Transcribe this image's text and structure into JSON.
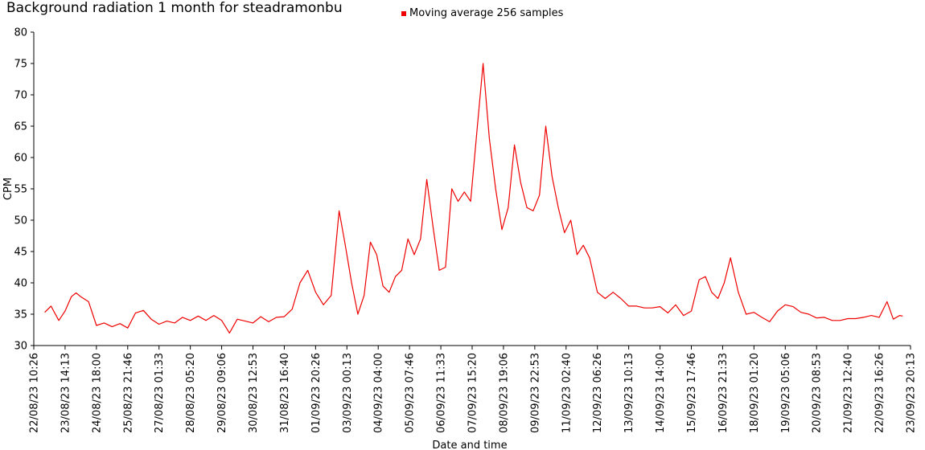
{
  "chart_data": {
    "type": "line",
    "title": "Background radiation 1 month for steadramonbu",
    "xlabel": "Date and time",
    "ylabel": "CPM",
    "ylim": [
      30,
      80
    ],
    "yticks": [
      30,
      35,
      40,
      45,
      50,
      55,
      60,
      65,
      70,
      75,
      80
    ],
    "xticks": [
      "22/08/23 10:26",
      "23/08/23 14:13",
      "24/08/23 18:00",
      "25/08/23 21:46",
      "27/08/23 01:33",
      "28/08/23 05:20",
      "29/08/23 09:06",
      "30/08/23 12:53",
      "31/08/23 16:40",
      "01/09/23 20:26",
      "03/09/23 00:13",
      "04/09/23 04:00",
      "05/09/23 07:46",
      "06/09/23 11:33",
      "07/09/23 15:20",
      "08/09/23 19:06",
      "09/09/23 22:53",
      "11/09/23 02:40",
      "12/09/23 06:26",
      "13/09/23 10:13",
      "14/09/23 14:00",
      "15/09/23 17:46",
      "16/09/23 21:33",
      "18/09/23 01:20",
      "19/09/23 05:06",
      "20/09/23 08:53",
      "21/09/23 12:40",
      "22/09/23 16:26",
      "23/09/23 20:13"
    ],
    "legend": "top-center",
    "grid": false,
    "series": [
      {
        "name": "Moving average 256 samples",
        "color": "#ee0000",
        "x": [
          0.35,
          0.55,
          0.8,
          1.0,
          1.2,
          1.35,
          1.5,
          1.75,
          2.0,
          2.25,
          2.5,
          2.75,
          3.0,
          3.25,
          3.5,
          3.75,
          4.0,
          4.25,
          4.5,
          4.75,
          5.0,
          5.25,
          5.5,
          5.75,
          6.0,
          6.25,
          6.5,
          6.75,
          7.0,
          7.25,
          7.5,
          7.75,
          8.0,
          8.25,
          8.5,
          8.75,
          9.0,
          9.25,
          9.5,
          9.75,
          9.95,
          10.15,
          10.35,
          10.55,
          10.75,
          10.95,
          11.15,
          11.35,
          11.55,
          11.75,
          11.95,
          12.15,
          12.35,
          12.55,
          12.75,
          12.95,
          13.15,
          13.35,
          13.55,
          13.75,
          13.95,
          14.15,
          14.35,
          14.55,
          14.75,
          14.95,
          15.15,
          15.35,
          15.55,
          15.75,
          15.95,
          16.15,
          16.35,
          16.55,
          16.75,
          16.95,
          17.15,
          17.35,
          17.55,
          17.75,
          18.0,
          18.25,
          18.5,
          18.75,
          19.0,
          19.25,
          19.5,
          19.75,
          20.0,
          20.25,
          20.5,
          20.75,
          21.0,
          21.25,
          21.45,
          21.65,
          21.85,
          22.05,
          22.25,
          22.5,
          22.75,
          23.0,
          23.25,
          23.5,
          23.75,
          24.0,
          24.25,
          24.5,
          24.75,
          25.0,
          25.25,
          25.5,
          25.75,
          26.0,
          26.25,
          26.5,
          26.75,
          27.0,
          27.25,
          27.45,
          27.65,
          27.75
        ],
        "y": [
          35.3,
          36.3,
          34.0,
          35.5,
          37.8,
          38.4,
          37.8,
          37.0,
          33.2,
          33.6,
          33.0,
          33.5,
          32.8,
          35.2,
          35.6,
          34.2,
          33.4,
          33.9,
          33.6,
          34.5,
          34.0,
          34.7,
          34.0,
          34.8,
          34.0,
          32.0,
          34.2,
          33.9,
          33.6,
          34.6,
          33.8,
          34.5,
          34.6,
          35.8,
          40.0,
          42.0,
          38.5,
          36.5,
          38.0,
          51.5,
          46.0,
          40.0,
          35.0,
          38.0,
          46.5,
          44.5,
          39.5,
          38.5,
          41.0,
          42.0,
          47.0,
          44.5,
          47.0,
          56.5,
          49.0,
          42.0,
          42.5,
          55.0,
          53.0,
          54.5,
          53.0,
          64.0,
          75.0,
          63.0,
          55.0,
          48.5,
          52.0,
          62.0,
          56.0,
          52.0,
          51.5,
          54.0,
          65.0,
          57.0,
          52.0,
          48.0,
          50.0,
          44.5,
          46.0,
          44.0,
          38.5,
          37.5,
          38.5,
          37.5,
          36.3,
          36.3,
          36.0,
          36.0,
          36.2,
          35.2,
          36.5,
          34.8,
          35.5,
          40.5,
          41.0,
          38.5,
          37.5,
          40.0,
          44.0,
          38.5,
          35.0,
          35.3,
          34.5,
          33.8,
          35.5,
          36.5,
          36.2,
          35.3,
          35.0,
          34.4,
          34.5,
          34.0,
          34.0,
          34.3,
          34.3,
          34.5,
          34.8,
          34.5,
          37.0,
          34.2,
          34.8,
          34.7
        ]
      }
    ]
  }
}
